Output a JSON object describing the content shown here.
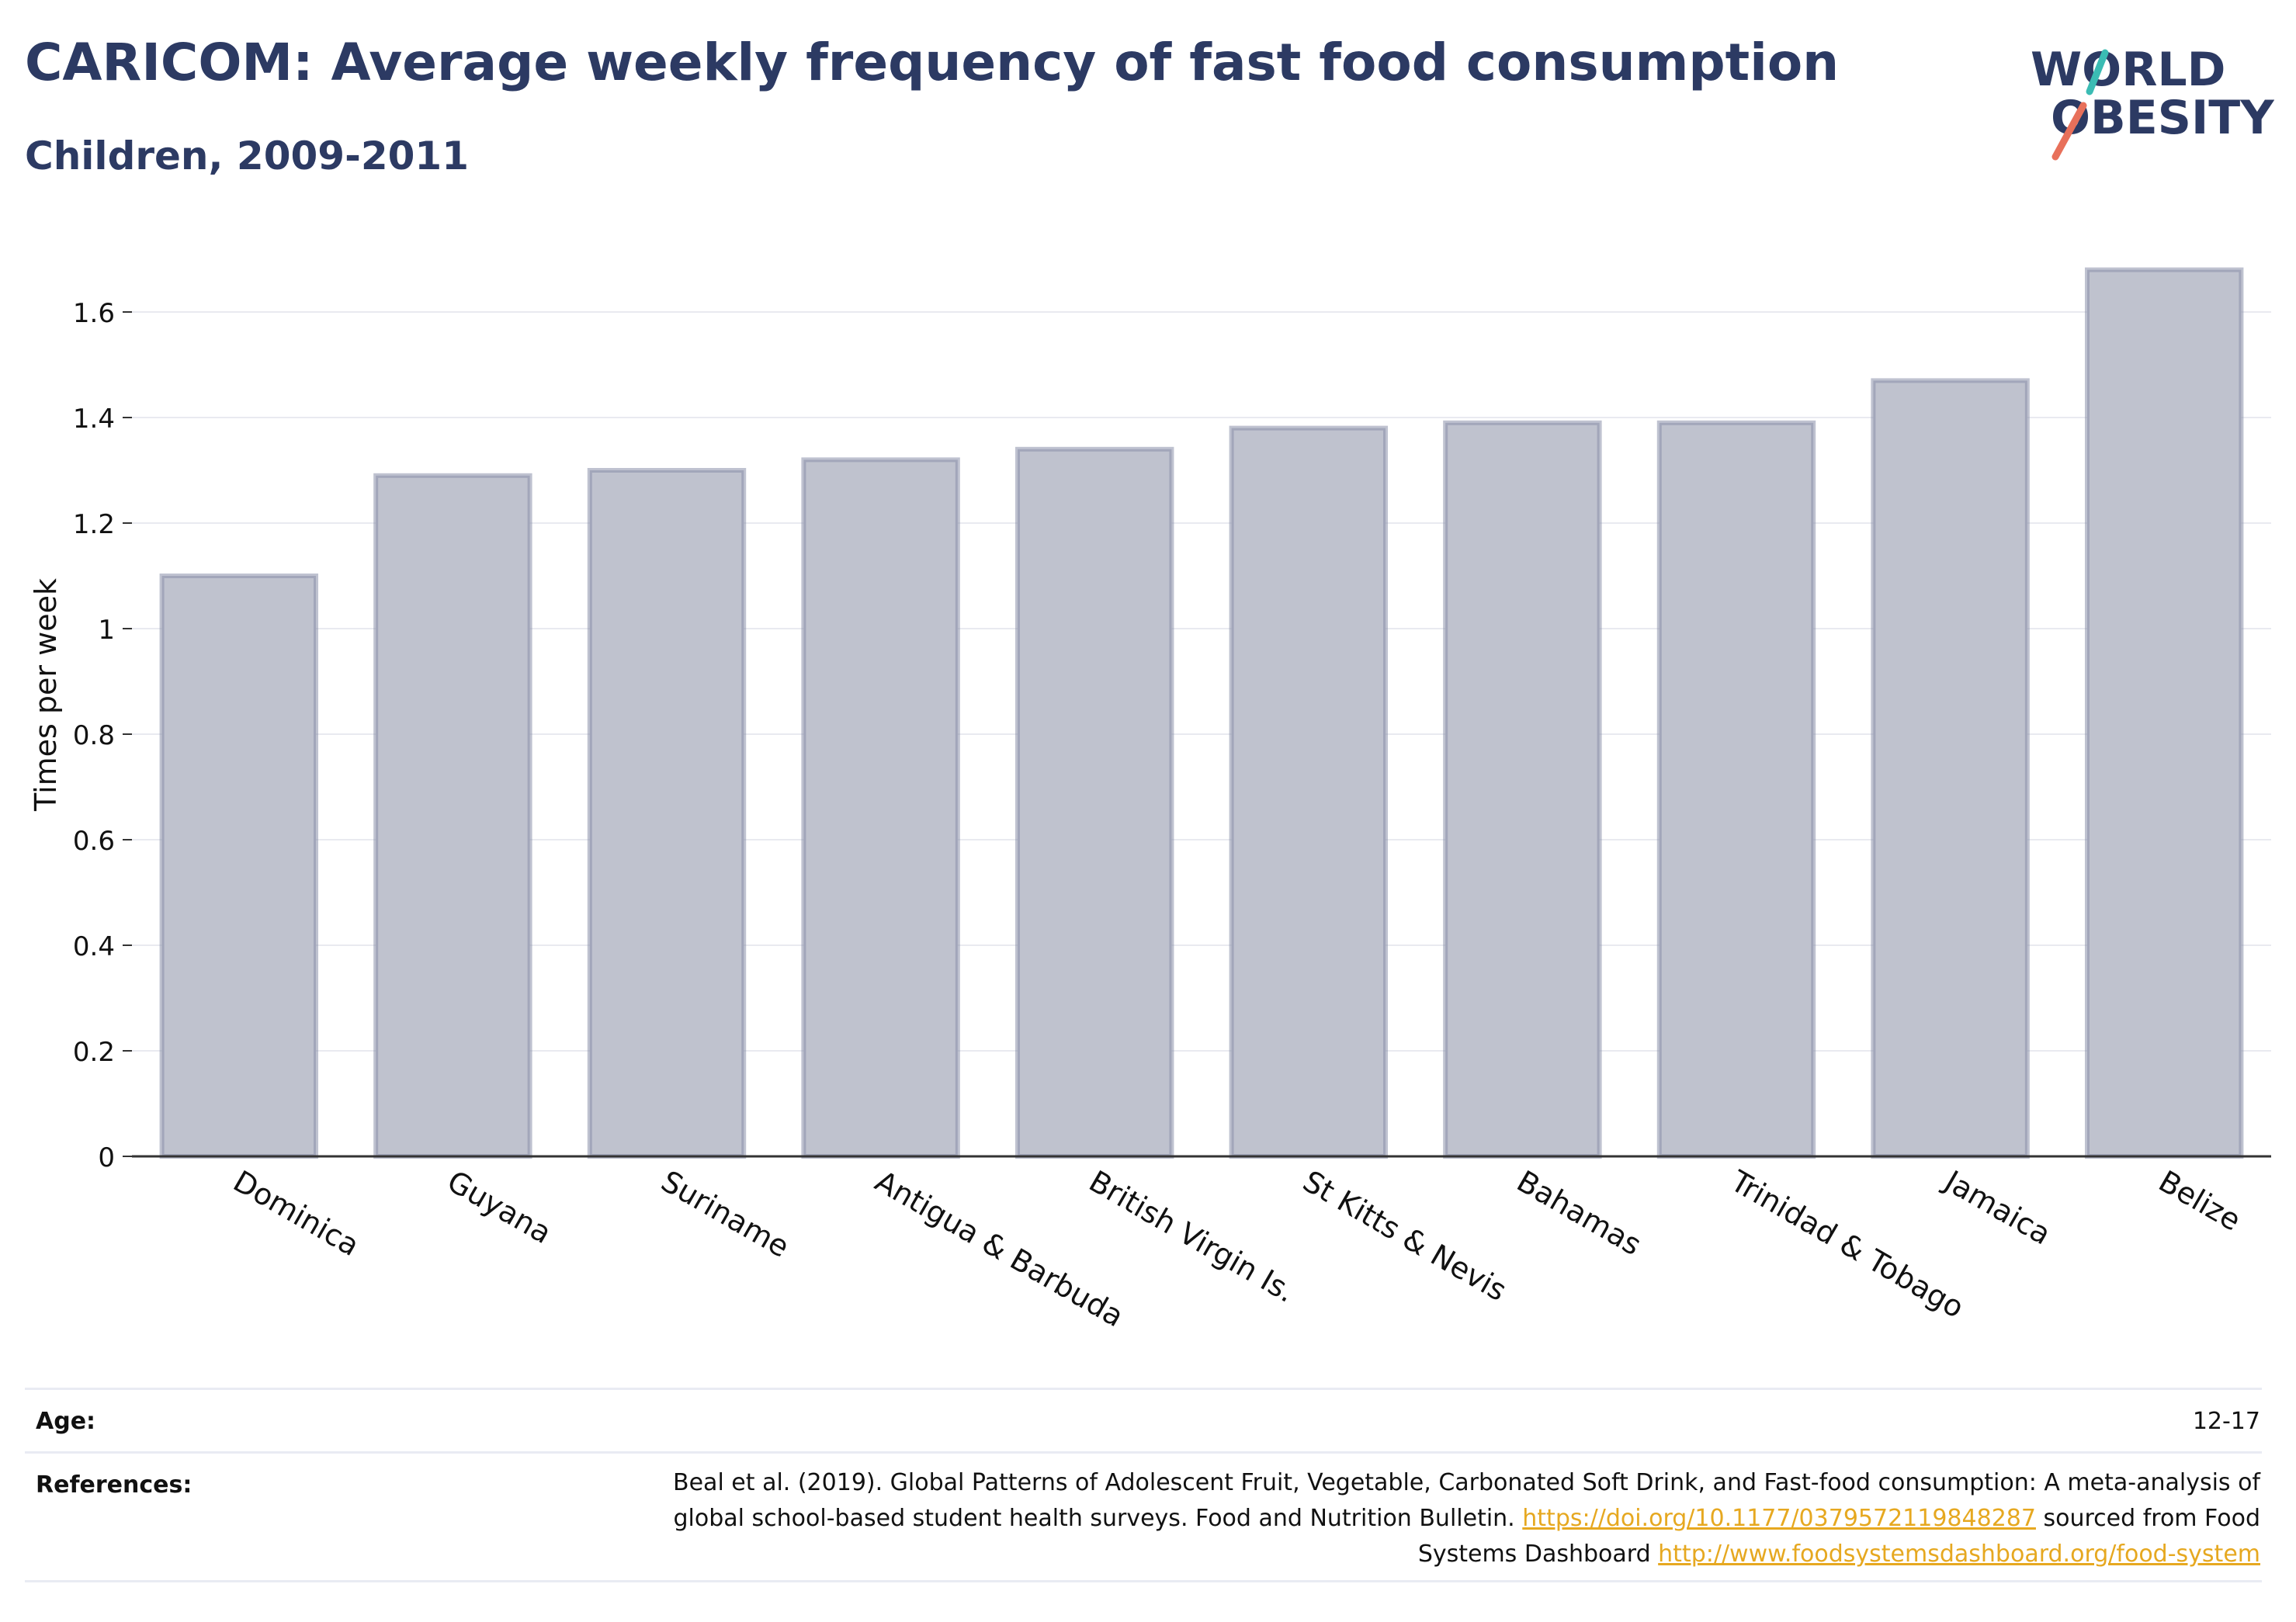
{
  "header": {
    "title": "CARICOM: Average weekly frequency of fast food consumption",
    "subtitle": "Children, 2009-2011"
  },
  "logo": {
    "line1": "WORLD",
    "line2": "OBESITY",
    "colors": {
      "text": "#2c3a63",
      "slash_top": "#3bbcb4",
      "slash_bottom": "#e8705a"
    }
  },
  "chart_data": {
    "type": "bar",
    "title": "",
    "ylabel": "Times per week",
    "xlabel": "",
    "ylim": [
      0,
      1.75
    ],
    "yticks": [
      0,
      0.2,
      0.4,
      0.6,
      0.8,
      1,
      1.2,
      1.4,
      1.6
    ],
    "ytick_labels": [
      "0",
      "0.2",
      "0.4",
      "0.6",
      "0.8",
      "1",
      "1.2",
      "1.4",
      "1.6"
    ],
    "grid": true,
    "categories": [
      "Dominica",
      "Guyana",
      "Suriname",
      "Antigua & Barbuda",
      "British Virgin Is.",
      "St Kitts & Nevis",
      "Bahamas",
      "Trinidad & Tobago",
      "Jamaica",
      "Belize"
    ],
    "values": [
      1.1,
      1.29,
      1.3,
      1.32,
      1.34,
      1.38,
      1.39,
      1.39,
      1.47,
      1.68
    ],
    "colors": {
      "bar_fill": "#bfc2ce",
      "bar_stroke": "#8a90a9",
      "axis": "#333333",
      "grid": "#e9eaf0"
    }
  },
  "footer": {
    "age_label": "Age:",
    "age_value": "12-17",
    "references_label": "References:",
    "references_text1": "Beal et al. (2019). Global Patterns of Adolescent Fruit, Vegetable, Carbonated Soft Drink, and Fast-food consumption: A meta-analysis of global school-based student health surveys. Food and Nutrition Bulletin.",
    "references_link1": "https://doi.org/10.1177/0379572119848287",
    "references_text2": "sourced from Food Systems Dashboard",
    "references_link2": "http://www.foodsystemsdashboard.org/food-system"
  }
}
